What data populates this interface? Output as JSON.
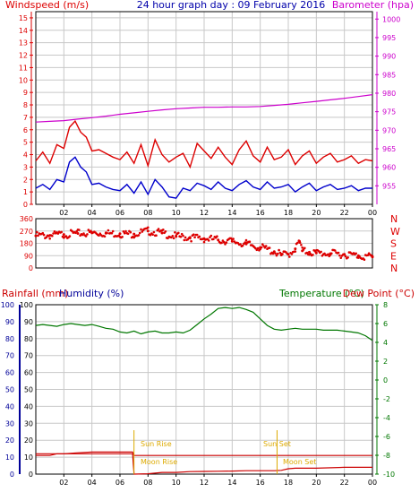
{
  "colors": {
    "wind": "#dd0000",
    "gust": "#0000cc",
    "baro": "#cc00cc",
    "dir": "#dd0000",
    "temp": "#007700",
    "dew": "#cc0000",
    "hum": "#000099",
    "rain": "#cc0000",
    "sunmoon": "#ddaa00",
    "frame": "#000000",
    "grid": "#c8c8c8"
  },
  "chart_data": [
    {
      "type": "line",
      "title": "24 hour graph day : 09 February 2016",
      "ylabel": "Windspeed (m/s)",
      "y2label": "Barometer (hpa)",
      "ylim": [
        0,
        15.5
      ],
      "y2lim": [
        950,
        1002
      ],
      "yticks": [
        "0",
        "1",
        "2",
        "3",
        "4",
        "5",
        "6",
        "7",
        "8",
        "9",
        "10",
        "11",
        "12",
        "13",
        "14",
        "15"
      ],
      "y2ticks": [
        "955",
        "960",
        "965",
        "970",
        "975",
        "980",
        "985",
        "990",
        "995",
        "1000"
      ],
      "xlim": [
        0,
        24
      ],
      "xticks": [
        "02",
        "04",
        "06",
        "08",
        "10",
        "12",
        "14",
        "16",
        "18",
        "20",
        "22",
        "00"
      ],
      "grid": true,
      "series": [
        {
          "name": "Barometer",
          "axis": "right",
          "x": [
            0,
            1,
            2,
            3,
            4,
            5,
            6,
            7,
            8,
            9,
            10,
            11,
            12,
            13,
            14,
            15,
            16,
            17,
            18,
            19,
            20,
            21,
            22,
            23,
            24
          ],
          "values": [
            972.2,
            972.4,
            972.6,
            973.0,
            973.4,
            973.8,
            974.3,
            974.7,
            975.1,
            975.5,
            975.8,
            976.0,
            976.2,
            976.2,
            976.3,
            976.3,
            976.4,
            976.7,
            977.0,
            977.4,
            977.8,
            978.2,
            978.6,
            979.1,
            979.6
          ]
        },
        {
          "name": "Wind gust",
          "x": [
            0,
            0.5,
            1,
            1.5,
            2,
            2.4,
            2.8,
            3.2,
            3.6,
            4,
            4.5,
            5,
            5.5,
            6,
            6.5,
            7,
            7.5,
            8,
            8.5,
            9,
            9.5,
            10,
            10.5,
            11,
            11.5,
            12,
            12.5,
            13,
            13.5,
            14,
            14.5,
            15,
            15.5,
            16,
            16.5,
            17,
            17.5,
            18,
            18.5,
            19,
            19.5,
            20,
            20.5,
            21,
            21.5,
            22,
            22.5,
            23,
            23.5,
            24
          ],
          "values": [
            3.5,
            4.2,
            3.3,
            4.8,
            4.5,
            6.2,
            6.7,
            5.8,
            5.4,
            4.3,
            4.4,
            4.1,
            3.8,
            3.6,
            4.2,
            3.3,
            4.8,
            3.1,
            5.2,
            4.0,
            3.4,
            3.8,
            4.1,
            3.0,
            4.9,
            4.3,
            3.7,
            4.6,
            3.8,
            3.2,
            4.4,
            5.1,
            3.9,
            3.4,
            4.6,
            3.6,
            3.8,
            4.4,
            3.2,
            3.9,
            4.3,
            3.3,
            3.8,
            4.1,
            3.4,
            3.6,
            3.9,
            3.3,
            3.6,
            3.5
          ]
        },
        {
          "name": "Wind speed",
          "x": [
            0,
            0.5,
            1,
            1.5,
            2,
            2.4,
            2.8,
            3.2,
            3.6,
            4,
            4.5,
            5,
            5.5,
            6,
            6.5,
            7,
            7.5,
            8,
            8.5,
            9,
            9.5,
            10,
            10.5,
            11,
            11.5,
            12,
            12.5,
            13,
            13.5,
            14,
            14.5,
            15,
            15.5,
            16,
            16.5,
            17,
            17.5,
            18,
            18.5,
            19,
            19.5,
            20,
            20.5,
            21,
            21.5,
            22,
            22.5,
            23,
            23.5,
            24
          ],
          "values": [
            1.3,
            1.6,
            1.2,
            2.0,
            1.8,
            3.4,
            3.8,
            3.0,
            2.6,
            1.6,
            1.7,
            1.4,
            1.2,
            1.1,
            1.6,
            0.9,
            1.8,
            0.8,
            2.0,
            1.4,
            0.6,
            0.5,
            1.3,
            1.1,
            1.7,
            1.5,
            1.2,
            1.8,
            1.3,
            1.1,
            1.6,
            1.9,
            1.4,
            1.2,
            1.8,
            1.3,
            1.4,
            1.6,
            1.0,
            1.4,
            1.7,
            1.1,
            1.4,
            1.6,
            1.2,
            1.3,
            1.5,
            1.1,
            1.3,
            1.3
          ]
        }
      ]
    },
    {
      "type": "scatter",
      "ylim": [
        0,
        360
      ],
      "yticks": [
        "0",
        "90",
        "180",
        "270",
        "360"
      ],
      "right_labels": [
        "N",
        "W",
        "S",
        "E",
        "N"
      ],
      "xlim": [
        0,
        24
      ],
      "grid": true,
      "series": [
        {
          "name": "Wind direction",
          "x": [
            0,
            1,
            2,
            3,
            4,
            5,
            6,
            7,
            8,
            9,
            10,
            11,
            12,
            13,
            14,
            15,
            16,
            17,
            17.5,
            18,
            18.5,
            18.8,
            19,
            19.5,
            20,
            21,
            22,
            23,
            24
          ],
          "values": [
            235,
            238,
            245,
            252,
            256,
            253,
            250,
            248,
            270,
            255,
            230,
            223,
            215,
            205,
            195,
            175,
            150,
            120,
            95,
            100,
            140,
            195,
            125,
            115,
            110,
            105,
            100,
            90,
            80
          ]
        }
      ]
    },
    {
      "type": "line",
      "ylabel": "Rainfall (mm)",
      "ylabel2": "Humidity (%)",
      "y2label": "Temperature (°C)",
      "y2label2": "Dew Point (°C)",
      "ylim": [
        0,
        100
      ],
      "yticks": [
        "0",
        "10",
        "20",
        "30",
        "40",
        "50",
        "60",
        "70",
        "80",
        "90",
        "100"
      ],
      "y2lim": [
        -10,
        8
      ],
      "y2ticks": [
        "-10",
        "-8",
        "-6",
        "-4",
        "-2",
        "0",
        "2",
        "4",
        "6",
        "8"
      ],
      "xlim": [
        0,
        24
      ],
      "xticks": [
        "02",
        "04",
        "06",
        "08",
        "10",
        "12",
        "14",
        "16",
        "18",
        "20",
        "22",
        "00"
      ],
      "grid": true,
      "annotations": {
        "sun_rise": "Sun Rise",
        "sun_set": "Sun Set",
        "moon_rise": "Moon Rise",
        "moon_set": "Moon Set",
        "sun_rise_x": 7.0,
        "sun_set_x": 17.2,
        "moon_rise_x": 7.7,
        "moon_set_x": 18.0
      },
      "series": [
        {
          "name": "Temperature",
          "axis": "right",
          "x": [
            0,
            0.5,
            1,
            1.5,
            2,
            2.5,
            3,
            3.5,
            4,
            4.5,
            5,
            5.5,
            6,
            6.5,
            7,
            7.5,
            8,
            8.5,
            9,
            9.5,
            10,
            10.5,
            11,
            11.5,
            12,
            12.5,
            13,
            13.5,
            14,
            14.5,
            15,
            15.5,
            16,
            16.5,
            17,
            17.5,
            18,
            18.5,
            19,
            19.5,
            20,
            20.5,
            21,
            21.5,
            22,
            22.5,
            23,
            23.5,
            24
          ],
          "values": [
            5.8,
            5.9,
            5.8,
            5.7,
            5.9,
            6.0,
            5.9,
            5.8,
            5.9,
            5.7,
            5.5,
            5.4,
            5.1,
            5.0,
            5.2,
            4.9,
            5.1,
            5.2,
            5.0,
            5.0,
            5.1,
            5.0,
            5.3,
            5.9,
            6.5,
            7.0,
            7.6,
            7.7,
            7.6,
            7.7,
            7.5,
            7.2,
            6.5,
            5.8,
            5.4,
            5.3,
            5.4,
            5.5,
            5.4,
            5.4,
            5.4,
            5.3,
            5.3,
            5.3,
            5.2,
            5.1,
            5.0,
            4.7,
            4.2
          ]
        },
        {
          "name": "Rainfall",
          "x": [
            0,
            1,
            1.5,
            2,
            3,
            4,
            5,
            6,
            6.9,
            7.0,
            24
          ],
          "values": [
            11,
            11,
            12,
            12,
            12.6,
            13,
            13,
            13,
            13,
            11,
            11
          ]
        },
        {
          "name": "Rain step",
          "x": [
            0,
            6.9,
            7.0,
            8,
            9,
            10,
            11,
            12,
            13,
            14,
            15,
            16,
            17,
            17.5,
            18,
            18.5,
            20,
            22,
            24
          ],
          "values": [
            12,
            12,
            0,
            0.2,
            1,
            1,
            1.5,
            1.6,
            1.7,
            1.8,
            2,
            2,
            2,
            2.2,
            3.2,
            3.5,
            3.5,
            4,
            4
          ]
        }
      ]
    }
  ]
}
